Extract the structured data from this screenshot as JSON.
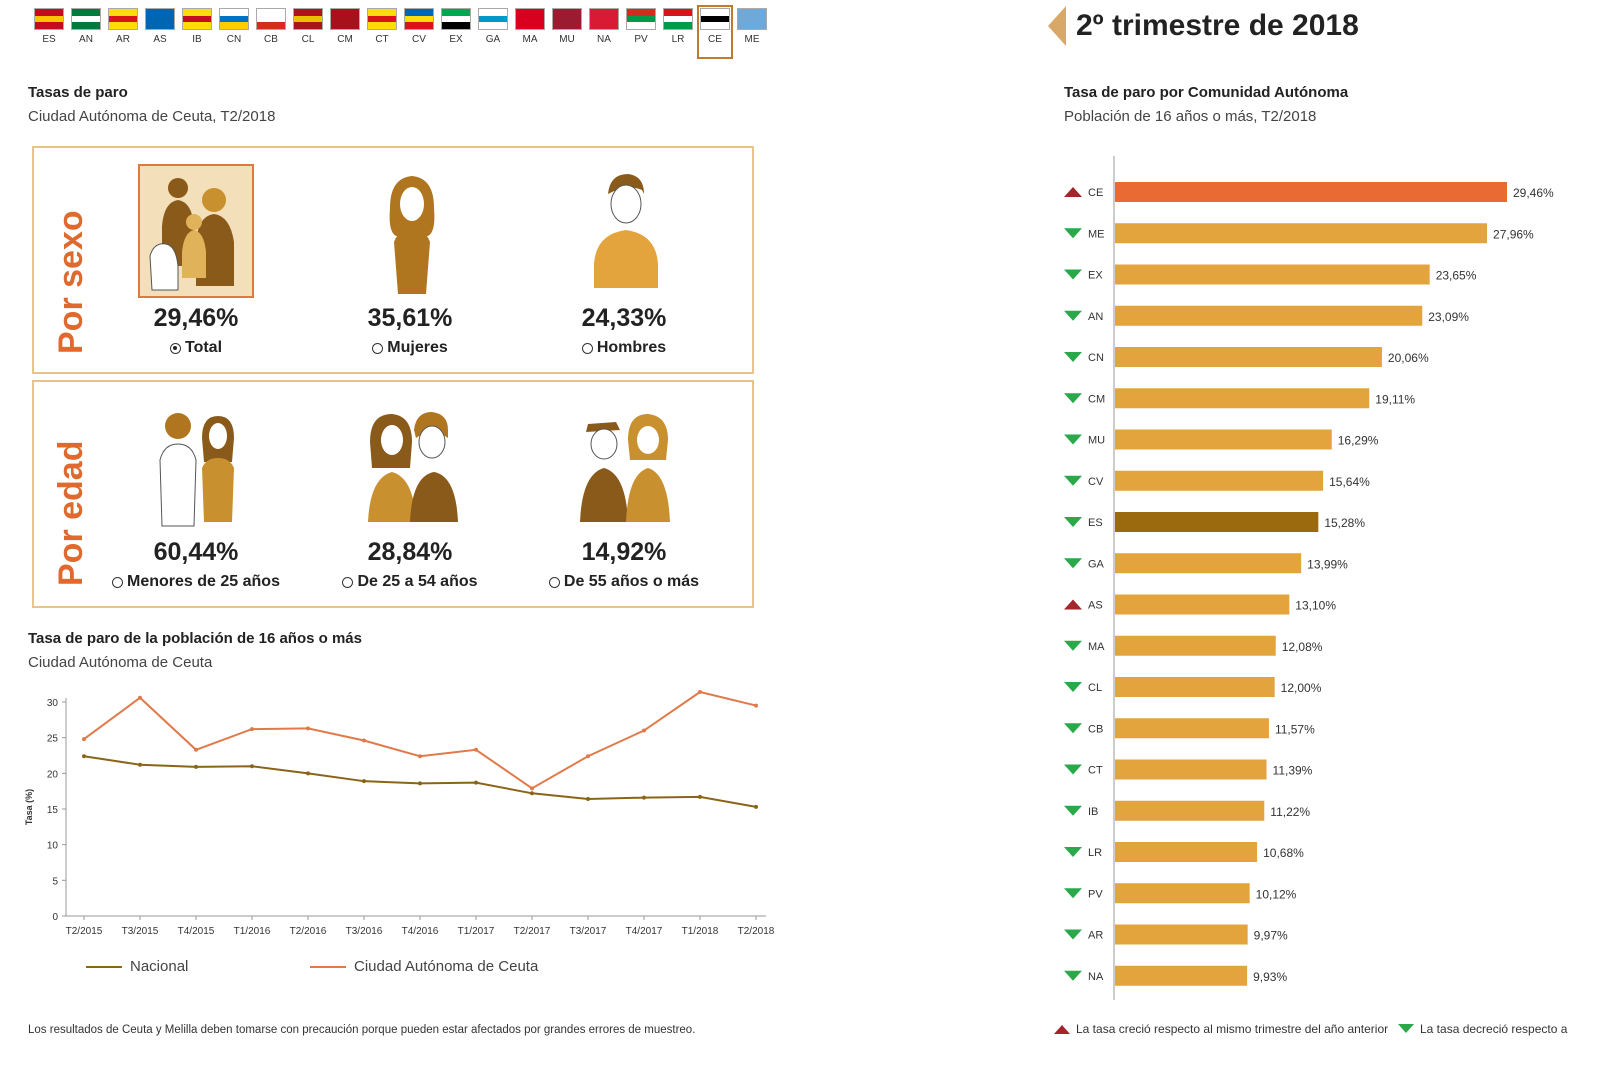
{
  "flags": [
    {
      "code": "ES",
      "colors": [
        "#c60b1e",
        "#ffc400",
        "#c60b1e"
      ]
    },
    {
      "code": "AN",
      "colors": [
        "#007a3d",
        "#ffffff",
        "#007a3d"
      ]
    },
    {
      "code": "AR",
      "colors": [
        "#fcdd09",
        "#da121a",
        "#fcdd09"
      ]
    },
    {
      "code": "AS",
      "colors": [
        "#0066b3",
        "#0066b3",
        "#0066b3"
      ]
    },
    {
      "code": "IB",
      "colors": [
        "#fcdd09",
        "#c60b1e",
        "#fcdd09"
      ]
    },
    {
      "code": "CN",
      "colors": [
        "#ffffff",
        "#0072c6",
        "#ffcc00"
      ]
    },
    {
      "code": "CB",
      "colors": [
        "#ffffff",
        "#ffffff",
        "#d52b1e"
      ]
    },
    {
      "code": "CL",
      "colors": [
        "#aa151b",
        "#f1bf00",
        "#aa151b"
      ]
    },
    {
      "code": "CM",
      "colors": [
        "#a8101c",
        "#a8101c",
        "#a8101c"
      ]
    },
    {
      "code": "CT",
      "colors": [
        "#fcdd09",
        "#da121a",
        "#fcdd09"
      ]
    },
    {
      "code": "CV",
      "colors": [
        "#0066b3",
        "#fcdd09",
        "#da121a"
      ]
    },
    {
      "code": "EX",
      "colors": [
        "#00a650",
        "#ffffff",
        "#000000"
      ]
    },
    {
      "code": "GA",
      "colors": [
        "#ffffff",
        "#0099cc",
        "#ffffff"
      ]
    },
    {
      "code": "MA",
      "colors": [
        "#d8001e",
        "#d8001e",
        "#d8001e"
      ]
    },
    {
      "code": "MU",
      "colors": [
        "#9b1b30",
        "#9b1b30",
        "#9b1b30"
      ]
    },
    {
      "code": "NA",
      "colors": [
        "#da1a35",
        "#da1a35",
        "#da1a35"
      ]
    },
    {
      "code": "PV",
      "colors": [
        "#d52b1e",
        "#009b48",
        "#ffffff"
      ]
    },
    {
      "code": "LR",
      "colors": [
        "#da121a",
        "#ffffff",
        "#009b48"
      ]
    },
    {
      "code": "CE",
      "colors": [
        "#ffffff",
        "#000000",
        "#ffffff"
      ],
      "selected": true
    },
    {
      "code": "ME",
      "colors": [
        "#6fa9d9",
        "#6fa9d9",
        "#6fa9d9"
      ]
    }
  ],
  "rates_header": {
    "title": "Tasas de paro",
    "subtitle": "Ciudad Autónoma de Ceuta, T2/2018"
  },
  "sex_panel": {
    "label": "Por sexo",
    "items": [
      {
        "value": "29,46%",
        "label": "Total",
        "selected": true
      },
      {
        "value": "35,61%",
        "label": "Mujeres",
        "selected": false
      },
      {
        "value": "24,33%",
        "label": "Hombres",
        "selected": false
      }
    ]
  },
  "age_panel": {
    "label": "Por edad",
    "items": [
      {
        "value": "60,44%",
        "label": "Menores de 25 años",
        "selected": false
      },
      {
        "value": "28,84%",
        "label": "De 25 a 54 años",
        "selected": false
      },
      {
        "value": "14,92%",
        "label": "De 55 años o más",
        "selected": false
      }
    ]
  },
  "line_header": {
    "title": "Tasa de paro de la población de 16 años o más",
    "subtitle": "Ciudad Autónoma de Ceuta"
  },
  "bar_header": {
    "title": "Tasa de paro por Comunidad Autónoma",
    "subtitle": "Población de 16 años o más, T2/2018"
  },
  "period": "2º trimestre de 2018",
  "notes": {
    "caution": "Los resultados de Ceuta y Melilla deben tomarse con precaución porque pueden estar afectados por grandes errores de muestreo.",
    "up": "La tasa creció respecto al mismo trimestre del año anterior",
    "down": "La tasa decreció respecto a"
  },
  "colors": {
    "accent": "#e06a2e",
    "bar": "#e3a33d",
    "bar_highlight": "#e96a33",
    "bar_spain": "#9b6a0e",
    "nacional": "#8a6418",
    "ceuta": "#e07a4a",
    "up": "#a3262a",
    "down": "#2aa84a"
  },
  "chart_data": [
    {
      "type": "line",
      "title": "Tasa de paro de la población de 16 años o más",
      "subtitle": "Ciudad Autónoma de Ceuta",
      "xlabel": "",
      "ylabel": "Tasa (%)",
      "ylim": [
        0,
        30
      ],
      "yticks": [
        0,
        5,
        10,
        15,
        20,
        25,
        30
      ],
      "categories": [
        "T2/2015",
        "T3/2015",
        "T4/2015",
        "T1/2016",
        "T2/2016",
        "T3/2016",
        "T4/2016",
        "T1/2017",
        "T2/2017",
        "T3/2017",
        "T4/2017",
        "T1/2018",
        "T2/2018"
      ],
      "series": [
        {
          "name": "Nacional",
          "values": [
            22.4,
            21.2,
            20.9,
            21.0,
            20.0,
            18.9,
            18.6,
            18.7,
            17.2,
            16.4,
            16.6,
            16.7,
            15.3
          ]
        },
        {
          "name": "Ciudad Autónoma de Ceuta",
          "values": [
            24.8,
            30.6,
            23.3,
            26.2,
            26.3,
            24.6,
            22.4,
            23.3,
            17.9,
            22.4,
            26.0,
            31.4,
            29.5
          ]
        }
      ]
    },
    {
      "type": "bar",
      "orientation": "horizontal",
      "title": "Tasa de paro por Comunidad Autónoma",
      "subtitle": "Población de 16 años o más, T2/2018",
      "categories": [
        "CE",
        "ME",
        "EX",
        "AN",
        "CN",
        "CM",
        "MU",
        "CV",
        "ES",
        "GA",
        "AS",
        "MA",
        "CL",
        "CB",
        "CT",
        "IB",
        "LR",
        "PV",
        "AR",
        "NA"
      ],
      "values": [
        29.46,
        27.96,
        23.65,
        23.09,
        20.06,
        19.11,
        16.29,
        15.64,
        15.28,
        13.99,
        13.1,
        12.08,
        12.0,
        11.57,
        11.39,
        11.22,
        10.68,
        10.12,
        9.97,
        9.93
      ],
      "labels": [
        "29,46%",
        "27,96%",
        "23,65%",
        "23,09%",
        "20,06%",
        "19,11%",
        "16,29%",
        "15,64%",
        "15,28%",
        "13,99%",
        "13,10%",
        "12,08%",
        "12,00%",
        "11,57%",
        "11,39%",
        "11,22%",
        "10,68%",
        "10,12%",
        "9,97%",
        "9,93%"
      ],
      "trend": [
        "up",
        "down",
        "down",
        "down",
        "down",
        "down",
        "down",
        "down",
        "down",
        "down",
        "up",
        "down",
        "down",
        "down",
        "down",
        "down",
        "down",
        "down",
        "down",
        "down"
      ]
    }
  ]
}
